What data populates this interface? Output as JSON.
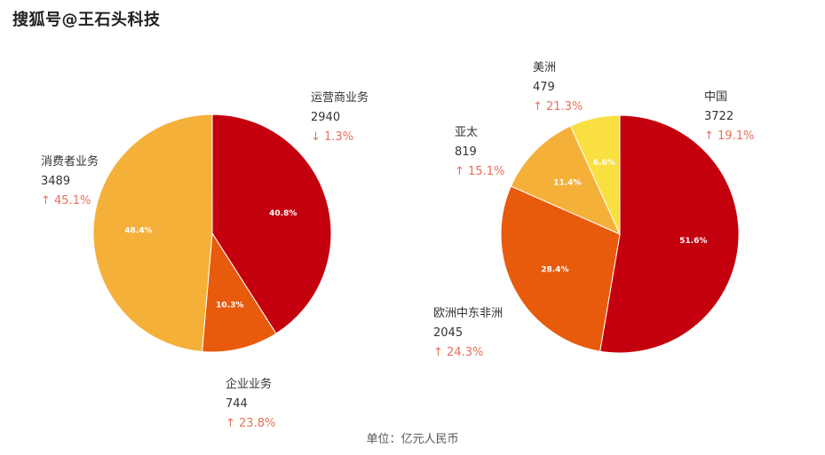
{
  "watermark": "搜狐号@王石头科技",
  "unit_note": "单位：亿元人民币",
  "chart_data": [
    {
      "type": "pie",
      "slices": [
        {
          "name": "运营商业务",
          "value": 2940,
          "pct": 40.8,
          "pct_label": "40.8%",
          "value_label": "2940",
          "change": "↓ 1.3%",
          "color": "#c4000e"
        },
        {
          "name": "企业业务",
          "value": 744,
          "pct": 10.3,
          "pct_label": "10.3%",
          "value_label": "744",
          "change": "↑ 23.8%",
          "color": "#e85b0c"
        },
        {
          "name": "消费者业务",
          "value": 3489,
          "pct": 48.4,
          "pct_label": "48.4%",
          "value_label": "3489",
          "change": "↑ 45.1%",
          "color": "#f5b03a"
        },
        {
          "name": "",
          "value": 0.5,
          "pct": 0.5,
          "pct_label": "",
          "value_label": "",
          "change": "",
          "color": "#b5b5b5"
        }
      ]
    },
    {
      "type": "pie",
      "slices": [
        {
          "name": "中国",
          "value": 3722,
          "pct": 51.6,
          "pct_label": "51.6%",
          "value_label": "3722",
          "change": "↑ 19.1%",
          "color": "#c4000e"
        },
        {
          "name": "欧洲中东非洲",
          "value": 2045,
          "pct": 28.4,
          "pct_label": "28.4%",
          "value_label": "2045",
          "change": "↑ 24.3%",
          "color": "#e85b0c"
        },
        {
          "name": "亚太",
          "value": 819,
          "pct": 11.4,
          "pct_label": "11.4%",
          "value_label": "819",
          "change": "↑ 15.1%",
          "color": "#f5b03a"
        },
        {
          "name": "美洲",
          "value": 479,
          "pct": 6.6,
          "pct_label": "6.6%",
          "value_label": "479",
          "change": "↑ 21.3%",
          "color": "#f9df40"
        },
        {
          "name": "",
          "value": 2.0,
          "pct": 2.0,
          "pct_label": "",
          "value_label": "",
          "change": "",
          "color": "#b5b5b5"
        }
      ]
    }
  ]
}
